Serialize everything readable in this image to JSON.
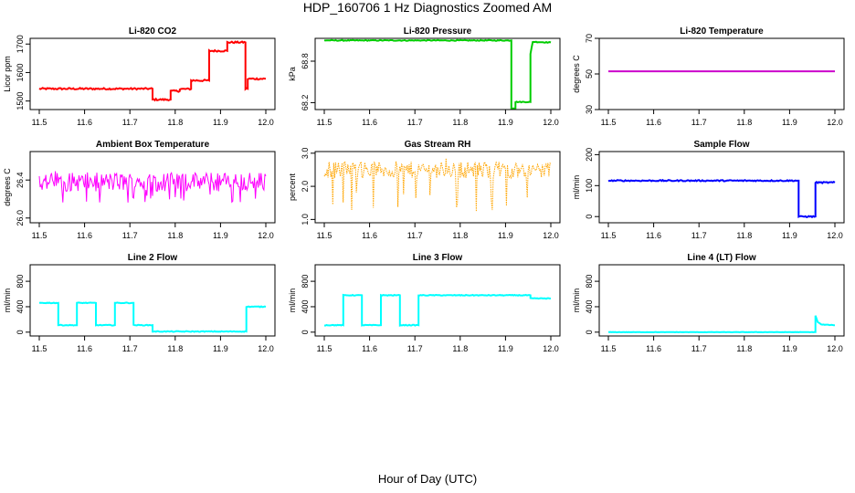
{
  "figure": {
    "title": "HDP_160706  1 Hz Diagnostics Zoomed AM",
    "xlabel": "Hour of Day (UTC)"
  },
  "chart_data": [
    {
      "type": "line",
      "title": "Li-820 CO2",
      "ylabel": "Licor ppm",
      "color": "#ff0000",
      "xlim": [
        11.5,
        12.0
      ],
      "ylim": [
        1470,
        1720
      ],
      "xticks": [
        "11.5",
        "11.6",
        "11.7",
        "11.8",
        "11.9",
        "12.0"
      ],
      "yticks": [
        1500,
        1600,
        1700
      ],
      "noise": 3,
      "segments": [
        [
          11.5,
          1543
        ],
        [
          11.75,
          1543
        ],
        [
          11.75,
          1505
        ],
        [
          11.79,
          1505
        ],
        [
          11.79,
          1535
        ],
        [
          11.81,
          1535
        ],
        [
          11.81,
          1542
        ],
        [
          11.835,
          1542
        ],
        [
          11.835,
          1572
        ],
        [
          11.875,
          1572
        ],
        [
          11.875,
          1676
        ],
        [
          11.915,
          1676
        ],
        [
          11.915,
          1706
        ],
        [
          11.955,
          1706
        ],
        [
          11.955,
          1543
        ],
        [
          11.96,
          1543
        ],
        [
          11.96,
          1578
        ],
        [
          12.0,
          1578
        ]
      ]
    },
    {
      "type": "line",
      "title": "Li-820 Pressure",
      "ylabel": "kPa",
      "color": "#00cc00",
      "xlim": [
        11.5,
        12.0
      ],
      "ylim": [
        68.1,
        69.13
      ],
      "xticks": [
        "11.5",
        "11.6",
        "11.7",
        "11.8",
        "11.9",
        "12.0"
      ],
      "yticks": [
        68.2,
        68.8
      ],
      "yticklabels": [
        "68.2",
        "68.8"
      ],
      "noise": 0.006,
      "segments": [
        [
          11.5,
          69.1
        ],
        [
          11.913,
          69.1
        ],
        [
          11.913,
          68.12
        ],
        [
          11.922,
          68.12
        ],
        [
          11.922,
          68.21
        ],
        [
          11.955,
          68.21
        ],
        [
          11.955,
          68.9
        ],
        [
          11.96,
          69.08
        ],
        [
          12.0,
          69.07
        ]
      ]
    },
    {
      "type": "line",
      "title": "Li-820 Temperature",
      "ylabel": "degrees C",
      "color": "#cc00cc",
      "xlim": [
        11.5,
        12.0
      ],
      "ylim": [
        30,
        70
      ],
      "xticks": [
        "11.5",
        "11.6",
        "11.7",
        "11.8",
        "11.9",
        "12.0"
      ],
      "yticks": [
        30,
        50,
        70
      ],
      "noise": 0,
      "segments": [
        [
          11.5,
          51.5
        ],
        [
          12.0,
          51.5
        ]
      ]
    },
    {
      "type": "line",
      "title": "Ambient Box Temperature",
      "ylabel": "degrees C",
      "color": "#ff00ff",
      "xlim": [
        11.5,
        12.0
      ],
      "ylim": [
        25.95,
        26.7
      ],
      "xticks": [
        "11.5",
        "11.6",
        "11.7",
        "11.8",
        "11.9",
        "12.0"
      ],
      "yticks": [
        26.0,
        26.4
      ],
      "yticklabels": [
        "26.0",
        "26.4"
      ],
      "style": "noise-band",
      "center": 26.38,
      "band": 0.1,
      "spikes": 0.22
    },
    {
      "type": "line",
      "title": "Gas Stream RH",
      "ylabel": "percent",
      "color": "#ffa500",
      "xlim": [
        11.5,
        12.0
      ],
      "ylim": [
        0.9,
        3.05
      ],
      "xticks": [
        "11.5",
        "11.6",
        "11.7",
        "11.8",
        "11.9",
        "12.0"
      ],
      "yticks": [
        1.0,
        2.0,
        3.0
      ],
      "yticklabels": [
        "1.0",
        "2.0",
        "3.0"
      ],
      "style": "noise-band",
      "center": 2.5,
      "band": 0.25,
      "spikes": 1.3,
      "dotted": true
    },
    {
      "type": "line",
      "title": "Sample Flow",
      "ylabel": "ml/min",
      "color": "#0000ff",
      "xlim": [
        11.5,
        12.0
      ],
      "ylim": [
        -20,
        210
      ],
      "xticks": [
        "11.5",
        "11.6",
        "11.7",
        "11.8",
        "11.9",
        "12.0"
      ],
      "yticks": [
        0,
        100,
        200
      ],
      "noise": 2,
      "segments": [
        [
          11.5,
          116
        ],
        [
          11.92,
          116
        ],
        [
          11.92,
          0
        ],
        [
          11.957,
          0
        ],
        [
          11.957,
          110
        ],
        [
          12.0,
          110
        ]
      ]
    },
    {
      "type": "line",
      "title": "Line 2 Flow",
      "ylabel": "ml/min",
      "color": "#00ffff",
      "xlim": [
        11.5,
        12.0
      ],
      "ylim": [
        -60,
        1060
      ],
      "xticks": [
        "11.5",
        "11.6",
        "11.7",
        "11.8",
        "11.9",
        "12.0"
      ],
      "yticks": [
        0,
        400,
        800
      ],
      "noise": 6,
      "segments": [
        [
          11.5,
          460
        ],
        [
          11.542,
          460
        ],
        [
          11.542,
          110
        ],
        [
          11.583,
          110
        ],
        [
          11.583,
          460
        ],
        [
          11.625,
          460
        ],
        [
          11.625,
          110
        ],
        [
          11.667,
          110
        ],
        [
          11.667,
          460
        ],
        [
          11.708,
          460
        ],
        [
          11.708,
          110
        ],
        [
          11.75,
          110
        ],
        [
          11.75,
          10
        ],
        [
          11.957,
          10
        ],
        [
          11.957,
          400
        ],
        [
          12.0,
          400
        ]
      ]
    },
    {
      "type": "line",
      "title": "Line 3 Flow",
      "ylabel": "ml/min",
      "color": "#00ffff",
      "xlim": [
        11.5,
        12.0
      ],
      "ylim": [
        -60,
        1060
      ],
      "xticks": [
        "11.5",
        "11.6",
        "11.7",
        "11.8",
        "11.9",
        "12.0"
      ],
      "yticks": [
        0,
        400,
        800
      ],
      "noise": 6,
      "segments": [
        [
          11.5,
          110
        ],
        [
          11.542,
          110
        ],
        [
          11.542,
          580
        ],
        [
          11.583,
          580
        ],
        [
          11.583,
          110
        ],
        [
          11.625,
          110
        ],
        [
          11.625,
          580
        ],
        [
          11.667,
          580
        ],
        [
          11.667,
          110
        ],
        [
          11.708,
          110
        ],
        [
          11.708,
          580
        ],
        [
          11.955,
          580
        ],
        [
          11.955,
          530
        ],
        [
          12.0,
          530
        ]
      ]
    },
    {
      "type": "line",
      "title": "Line 4 (LT) Flow",
      "ylabel": "ml/min",
      "color": "#00ffff",
      "xlim": [
        11.5,
        12.0
      ],
      "ylim": [
        -60,
        1060
      ],
      "xticks": [
        "11.5",
        "11.6",
        "11.7",
        "11.8",
        "11.9",
        "12.0"
      ],
      "yticks": [
        0,
        400,
        800
      ],
      "noise": 3,
      "segments": [
        [
          11.5,
          0
        ],
        [
          11.957,
          0
        ],
        [
          11.957,
          260
        ],
        [
          11.962,
          160
        ],
        [
          11.97,
          120
        ],
        [
          12.0,
          110
        ]
      ]
    }
  ]
}
